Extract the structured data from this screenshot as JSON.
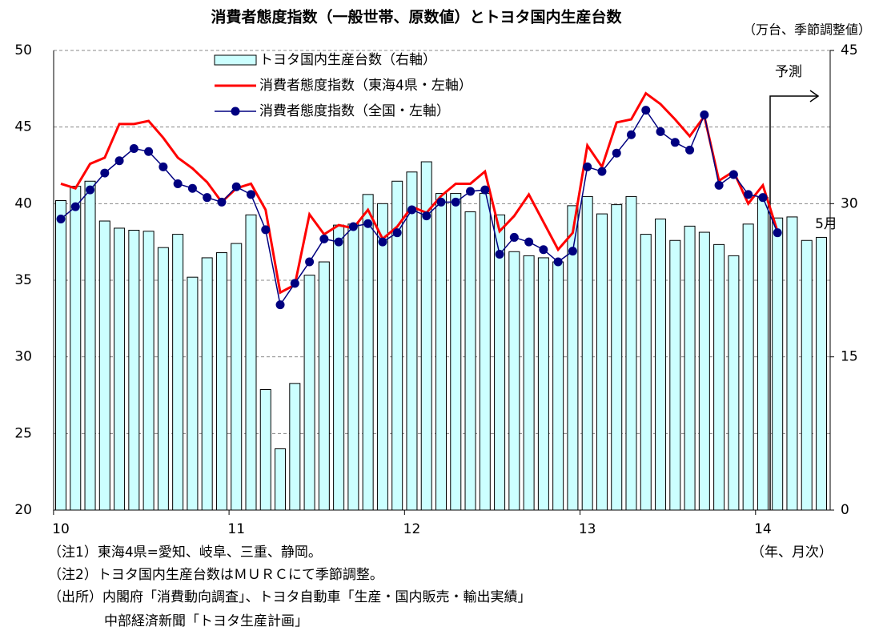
{
  "chart_data": {
    "type": "bar_line",
    "title": "消費者態度指数（一般世帯、原数値）とトヨタ国内生産台数",
    "y2_unit_label": "（万台、季節調整値）",
    "x_unit_label": "（年、月次）",
    "annotations": [
      "予測",
      "5月"
    ],
    "notes": [
      "（注1）東海4県=愛知、岐阜、三重、静岡。",
      "（注2）トヨタ国内生産台数はＭＵＲＣにて季節調整。",
      "（出所）内閣府「消費動向調査」、トヨタ自動車「生産・国内販売・輸出実績」",
      "中部経済新聞「トヨタ生産計画」"
    ],
    "categories": [
      "10",
      null,
      null,
      null,
      null,
      null,
      null,
      null,
      null,
      null,
      null,
      null,
      "11",
      null,
      null,
      null,
      null,
      null,
      null,
      null,
      null,
      null,
      null,
      null,
      "12",
      null,
      null,
      null,
      null,
      null,
      null,
      null,
      null,
      null,
      null,
      null,
      "13",
      null,
      null,
      null,
      null,
      null,
      null,
      null,
      null,
      null,
      null,
      null,
      "14",
      null,
      null,
      null,
      null
    ],
    "series": [
      {
        "name": "トヨタ国内生産台数（右軸）",
        "type": "bar",
        "axis": "y2",
        "color": "#ccffff",
        "values": [
          30.3,
          31.7,
          32.2,
          28.3,
          27.6,
          27.4,
          27.3,
          25.7,
          27.0,
          22.8,
          24.7,
          25.2,
          26.1,
          28.9,
          11.8,
          6.0,
          12.4,
          23.0,
          24.3,
          27.9,
          28.0,
          30.9,
          30.0,
          32.2,
          33.1,
          34.1,
          31.0,
          31.0,
          29.2,
          31.0,
          28.9,
          25.3,
          24.9,
          24.7,
          24.3,
          29.8,
          30.7,
          29.0,
          29.9,
          30.7,
          27.0,
          28.5,
          26.4,
          27.8,
          27.2,
          26.0,
          24.9,
          28.0,
          30.6,
          28.6,
          28.7,
          26.4,
          26.7
        ]
      },
      {
        "name": "消費者態度指数（東海4県・左軸）",
        "type": "line",
        "color": "#ff0000",
        "values": [
          41.3,
          41.0,
          42.6,
          43.0,
          45.2,
          45.2,
          45.4,
          44.3,
          43.0,
          42.3,
          41.4,
          40.1,
          41.0,
          41.3,
          39.6,
          34.2,
          34.7,
          39.3,
          38.0,
          38.6,
          38.4,
          39.6,
          37.7,
          38.5,
          39.8,
          39.4,
          40.5,
          41.3,
          41.3,
          42.1,
          38.2,
          39.2,
          40.6,
          38.8,
          37.0,
          38.1,
          43.8,
          42.4,
          45.3,
          45.5,
          47.2,
          46.5,
          45.5,
          44.4,
          45.7,
          41.5,
          42.1,
          40.0,
          41.2,
          38.2,
          null,
          null,
          null
        ]
      },
      {
        "name": "消費者態度指数（全国・左軸）",
        "type": "line",
        "markers": true,
        "color": "#000080",
        "values": [
          39.0,
          39.8,
          40.9,
          42.0,
          42.8,
          43.6,
          43.4,
          42.4,
          41.3,
          41.0,
          40.4,
          40.1,
          41.1,
          40.6,
          38.3,
          33.4,
          34.8,
          36.2,
          37.7,
          37.5,
          38.5,
          38.7,
          37.5,
          38.1,
          39.6,
          39.2,
          40.1,
          40.1,
          40.8,
          40.9,
          36.7,
          37.8,
          37.5,
          37.0,
          36.2,
          36.9,
          42.4,
          42.1,
          43.3,
          44.5,
          46.1,
          44.7,
          44.0,
          43.5,
          45.8,
          41.2,
          41.9,
          40.6,
          40.4,
          38.1,
          null,
          null,
          null
        ]
      }
    ],
    "ylim": [
      20,
      50
    ],
    "yticks": [
      20,
      25,
      30,
      35,
      40,
      45,
      50
    ],
    "y2lim": [
      0,
      45
    ],
    "y2ticks": [
      0,
      15,
      30,
      45
    ],
    "grid": true
  }
}
